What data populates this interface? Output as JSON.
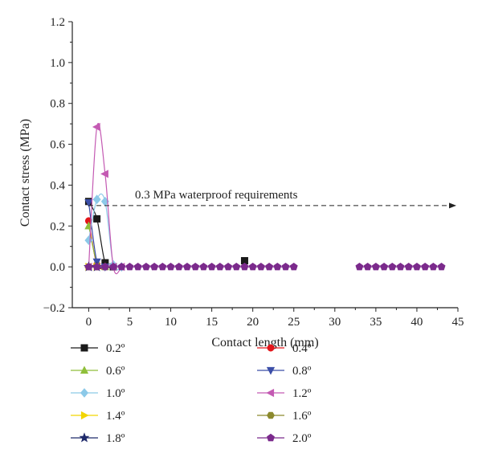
{
  "chart_data": {
    "type": "line",
    "xlabel": "Contact length (mm)",
    "ylabel": "Contact stress (MPa)",
    "xlim": [
      -2,
      45
    ],
    "ylim": [
      -0.2,
      1.2
    ],
    "x_ticks": [
      0,
      5,
      10,
      15,
      20,
      25,
      30,
      35,
      40,
      45
    ],
    "y_ticks": [
      -0.2,
      0.0,
      0.2,
      0.4,
      0.6,
      0.8,
      1.0,
      1.2
    ],
    "y_tick_labels": [
      "−0.2",
      "0.0",
      "0.2",
      "0.4",
      "0.6",
      "0.8",
      "1.0",
      "1.2"
    ],
    "grid": false,
    "annotation": {
      "text": "0.3 MPa waterproof requirements",
      "y": 0.3,
      "line_style": "dashed",
      "arrow": "right"
    },
    "legend_position": "bottom",
    "series": [
      {
        "name": "0.2º",
        "color": "#1a1a1a",
        "marker": "square",
        "points": [
          [
            0,
            0.32
          ],
          [
            1,
            0.235
          ],
          [
            2,
            0.02
          ],
          [
            3,
            0.0
          ],
          [
            19,
            0.03
          ]
        ]
      },
      {
        "name": "0.4º",
        "color": "#e3161b",
        "marker": "circle",
        "points": [
          [
            0,
            0.225
          ],
          [
            1,
            0.01
          ],
          [
            2,
            0.0
          ]
        ]
      },
      {
        "name": "0.6º",
        "color": "#8fbf3a",
        "marker": "triangle-up",
        "points": [
          [
            0,
            0.2
          ],
          [
            1,
            0.02
          ],
          [
            2,
            0.0
          ]
        ]
      },
      {
        "name": "0.8º",
        "color": "#3b4ea8",
        "marker": "triangle-down",
        "points": [
          [
            0,
            0.315
          ],
          [
            1,
            0.025
          ],
          [
            2,
            0.0
          ]
        ]
      },
      {
        "name": "1.0º",
        "color": "#8cc9e8",
        "marker": "diamond",
        "points": [
          [
            0,
            0.13
          ],
          [
            1,
            0.33
          ],
          [
            2,
            0.32
          ],
          [
            3,
            0.01
          ],
          [
            4,
            0.0
          ]
        ]
      },
      {
        "name": "1.2º",
        "color": "#c45ab3",
        "marker": "triangle-left",
        "points": [
          [
            0,
            0.0
          ],
          [
            1,
            0.685
          ],
          [
            2,
            0.455
          ],
          [
            3,
            0.0
          ],
          [
            4,
            0.0
          ]
        ]
      },
      {
        "name": "1.4º",
        "color": "#f2d500",
        "marker": "triangle-right",
        "points": [
          [
            0,
            0.0
          ],
          [
            1,
            0.0
          ]
        ]
      },
      {
        "name": "1.6º",
        "color": "#8c8a2e",
        "marker": "hexagon",
        "points": [
          [
            0,
            0.0
          ],
          [
            1,
            0.0
          ]
        ]
      },
      {
        "name": "1.8º",
        "color": "#1f2a6b",
        "marker": "star",
        "points": [
          [
            0,
            0.0
          ],
          [
            1,
            0.0
          ]
        ]
      },
      {
        "name": "2.0º",
        "color": "#7b2a8c",
        "marker": "pentagon",
        "points": [
          [
            0,
            0
          ],
          [
            1,
            0
          ],
          [
            2,
            0
          ],
          [
            3,
            0
          ],
          [
            4,
            0
          ],
          [
            5,
            0
          ],
          [
            6,
            0
          ],
          [
            7,
            0
          ],
          [
            8,
            0
          ],
          [
            9,
            0
          ],
          [
            10,
            0
          ],
          [
            11,
            0
          ],
          [
            12,
            0
          ],
          [
            13,
            0
          ],
          [
            14,
            0
          ],
          [
            15,
            0
          ],
          [
            16,
            0
          ],
          [
            17,
            0
          ],
          [
            18,
            0
          ],
          [
            19,
            0
          ],
          [
            20,
            0
          ],
          [
            21,
            0
          ],
          [
            22,
            0
          ],
          [
            23,
            0
          ],
          [
            24,
            0
          ],
          [
            25,
            0
          ],
          [
            33,
            0
          ],
          [
            34,
            0
          ],
          [
            35,
            0
          ],
          [
            36,
            0
          ],
          [
            37,
            0
          ],
          [
            38,
            0
          ],
          [
            39,
            0
          ],
          [
            40,
            0
          ],
          [
            41,
            0
          ],
          [
            42,
            0
          ],
          [
            43,
            0
          ]
        ]
      }
    ]
  }
}
